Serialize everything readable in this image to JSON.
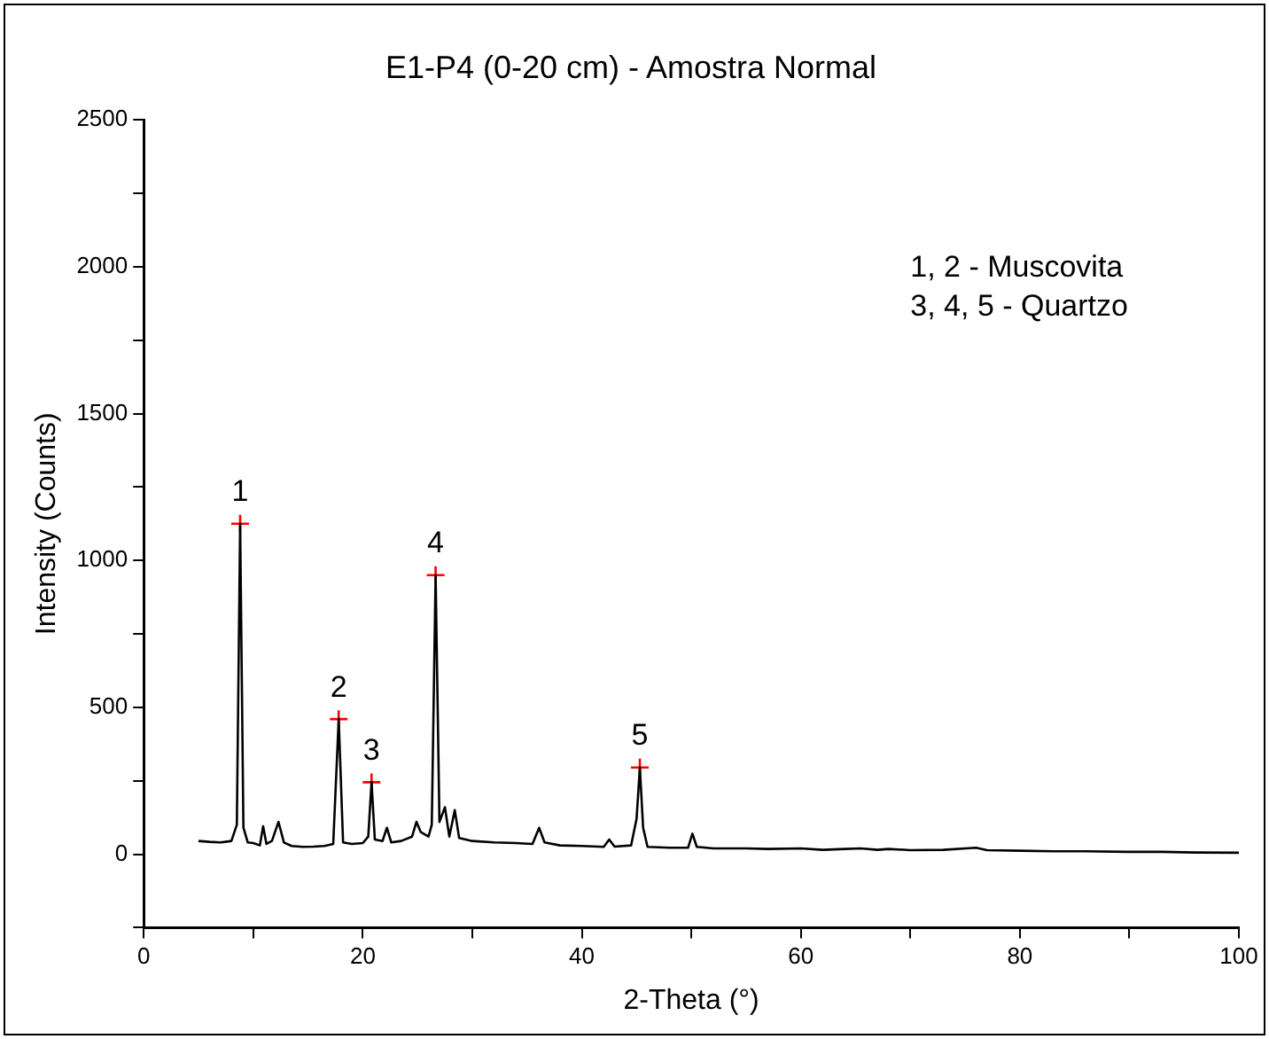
{
  "chart_data": {
    "type": "line",
    "title": "E1-P4 (0-20 cm) - Amostra Normal",
    "xlabel": "2-Theta (°)",
    "ylabel": "Intensity (Counts)",
    "xlim": [
      0,
      100
    ],
    "ylim": [
      -250,
      2500
    ],
    "xticks": [
      0,
      {
        "value": 10,
        "label": null
      },
      20,
      {
        "value": 30,
        "label": null
      },
      40,
      {
        "value": 50,
        "label": null
      },
      60,
      {
        "value": 70,
        "label": null
      },
      80,
      {
        "value": 90,
        "label": null
      },
      100
    ],
    "yticks": [
      {
        "value": -250,
        "label": null
      },
      0,
      {
        "value": 250,
        "label": null
      },
      500,
      {
        "value": 750,
        "label": null
      },
      1000,
      {
        "value": 1250,
        "label": null
      },
      1500,
      {
        "value": 1750,
        "label": null
      },
      2000,
      {
        "value": 2250,
        "label": null
      },
      2500
    ],
    "grid": false,
    "legend": false,
    "marker": "none",
    "line_style": "solid",
    "series": [
      {
        "color": "#000000",
        "x": [
          5,
          6,
          7,
          8,
          8.5,
          8.8,
          9.1,
          9.5,
          10,
          10.6,
          10.9,
          11.2,
          11.7,
          12.3,
          12.8,
          13.5,
          14.5,
          15.5,
          16.5,
          17.3,
          17.8,
          18.2,
          19,
          20,
          20.5,
          20.8,
          21.1,
          21.8,
          22.2,
          22.6,
          23.5,
          24.5,
          24.9,
          25.3,
          26,
          26.3,
          26.65,
          27,
          27.5,
          27.9,
          28.4,
          28.8,
          30,
          32,
          34,
          35.5,
          36.1,
          36.6,
          38,
          40,
          42,
          42.5,
          43,
          44.5,
          45,
          45.3,
          45.6,
          46,
          48,
          49.7,
          50.1,
          50.5,
          52,
          55,
          57,
          60,
          62,
          64,
          65.5,
          67,
          68,
          70,
          73,
          76,
          77,
          80,
          83,
          86,
          90,
          93,
          96,
          100
        ],
        "values": [
          45,
          42,
          40,
          45,
          100,
          1125,
          90,
          40,
          38,
          30,
          95,
          35,
          45,
          110,
          40,
          28,
          25,
          26,
          28,
          35,
          460,
          40,
          35,
          38,
          60,
          245,
          50,
          45,
          90,
          40,
          45,
          60,
          110,
          75,
          60,
          100,
          950,
          110,
          160,
          60,
          150,
          55,
          45,
          40,
          38,
          35,
          90,
          40,
          30,
          28,
          25,
          50,
          26,
          30,
          120,
          295,
          90,
          25,
          22,
          22,
          70,
          25,
          20,
          20,
          18,
          20,
          15,
          18,
          20,
          15,
          18,
          14,
          15,
          22,
          14,
          12,
          10,
          10,
          8,
          8,
          6,
          5
        ]
      },
      {
        "type": "scatter",
        "color": "#ff0000",
        "marker": "cross",
        "x": [
          8.8,
          17.8,
          20.8,
          26.65,
          45.3
        ],
        "values": [
          1125,
          460,
          245,
          950,
          295
        ]
      }
    ],
    "annotations": [
      {
        "text": "1",
        "x": 8.8,
        "y": 1125
      },
      {
        "text": "2",
        "x": 17.8,
        "y": 460
      },
      {
        "text": "3",
        "x": 20.8,
        "y": 245
      },
      {
        "text": "4",
        "x": 26.65,
        "y": 950
      },
      {
        "text": "5",
        "x": 45.3,
        "y": 295
      },
      "1, 2 - Muscovita",
      "3, 4, 5 - Quartzo"
    ]
  }
}
